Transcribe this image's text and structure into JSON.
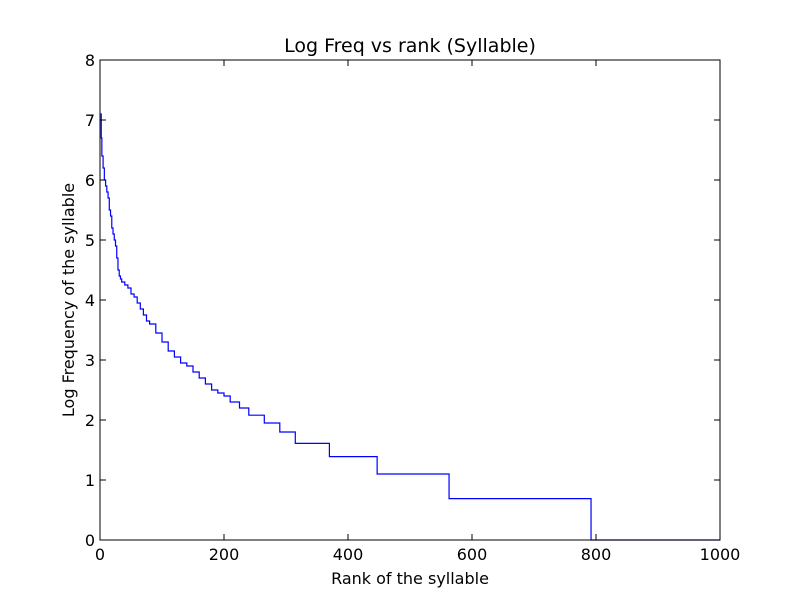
{
  "chart_data": {
    "type": "line",
    "title": "Log Freq vs rank (Syllable)",
    "xlabel": "Rank of the syllable",
    "ylabel": "Log Frequency of the syllable",
    "xlim": [
      0,
      1000
    ],
    "ylim": [
      0,
      8
    ],
    "xticks": [
      0,
      200,
      400,
      600,
      800,
      1000
    ],
    "yticks": [
      0,
      1,
      2,
      3,
      4,
      5,
      6,
      7,
      8
    ],
    "xtick_labels": [
      "0",
      "200",
      "400",
      "600",
      "800",
      "1000"
    ],
    "ytick_labels": [
      "0",
      "1",
      "2",
      "3",
      "4",
      "5",
      "6",
      "7",
      "8"
    ],
    "grid": false,
    "legend": "none",
    "series": [
      {
        "color": "#0000ff",
        "step": true,
        "x": [
          1,
          2,
          3,
          5,
          7,
          9,
          11,
          13,
          15,
          17,
          19,
          21,
          23,
          25,
          27,
          29,
          31,
          33,
          35,
          40,
          45,
          50,
          55,
          60,
          65,
          70,
          75,
          80,
          90,
          100,
          110,
          120,
          130,
          140,
          150,
          160,
          170,
          180,
          190,
          200,
          210,
          225,
          240,
          265,
          290,
          315,
          370,
          447,
          563,
          790,
          792,
          1000
        ],
        "y": [
          7.1,
          6.7,
          6.4,
          6.2,
          6.0,
          5.9,
          5.8,
          5.7,
          5.5,
          5.4,
          5.2,
          5.1,
          5.0,
          4.9,
          4.7,
          4.5,
          4.4,
          4.35,
          4.3,
          4.25,
          4.2,
          4.1,
          4.05,
          3.95,
          3.85,
          3.75,
          3.65,
          3.6,
          3.45,
          3.3,
          3.15,
          3.05,
          2.95,
          2.9,
          2.8,
          2.7,
          2.6,
          2.5,
          2.45,
          2.4,
          2.3,
          2.2,
          2.08,
          1.95,
          1.8,
          1.61,
          1.39,
          1.1,
          0.69,
          0.69,
          0.0,
          0.0
        ]
      }
    ]
  }
}
